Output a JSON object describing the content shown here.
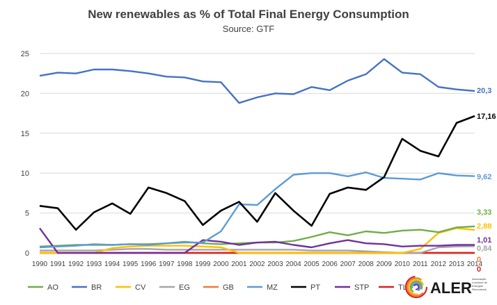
{
  "chart_data": {
    "type": "line",
    "title": "New renewables as % of Total Final Energy Consumption",
    "subtitle": "Source: GTF",
    "ylim": [
      0,
      25
    ],
    "yticks": [
      0,
      5,
      10,
      15,
      20,
      25
    ],
    "grid": true,
    "legend_position": "bottom",
    "x": [
      "1990",
      "1991",
      "1992",
      "1993",
      "1994",
      "1995",
      "1996",
      "1997",
      "1998",
      "1999",
      "2000",
      "2001",
      "2002",
      "2003",
      "2004",
      "2005",
      "2006",
      "2007",
      "2008",
      "2009",
      "2010",
      "2011",
      "2012",
      "2013",
      "2014"
    ],
    "series": [
      {
        "name": "AO",
        "color": "#70ad47",
        "end_label": "3,33",
        "values": [
          0.8,
          0.9,
          1.0,
          1.0,
          1.0,
          1.1,
          1.1,
          1.2,
          1.4,
          1.2,
          1.1,
          1.2,
          1.3,
          1.3,
          1.5,
          2.0,
          2.6,
          2.2,
          2.7,
          2.5,
          2.8,
          2.9,
          2.6,
          3.2,
          3.33
        ]
      },
      {
        "name": "BR",
        "color": "#4472c4",
        "end_label": "20,3",
        "values": [
          22.2,
          22.6,
          22.5,
          23.0,
          23.0,
          22.8,
          22.5,
          22.1,
          22.0,
          21.5,
          21.4,
          18.8,
          19.5,
          20.0,
          19.9,
          20.8,
          20.4,
          21.6,
          22.4,
          24.3,
          22.6,
          22.4,
          20.8,
          20.5,
          20.3
        ]
      },
      {
        "name": "CV",
        "color": "#ffc000",
        "end_label": "2,88",
        "values": [
          0.0,
          0.0,
          0.0,
          0.0,
          0.6,
          0.8,
          0.9,
          0.9,
          0.9,
          0.8,
          0.7,
          0.0,
          0.0,
          0.0,
          0.0,
          0.0,
          0.0,
          0.0,
          0.0,
          0.0,
          0.0,
          0.5,
          2.5,
          3.1,
          2.88
        ]
      },
      {
        "name": "EG",
        "color": "#a5a5a5",
        "end_label": "0,84",
        "values": [
          0.3,
          0.3,
          0.3,
          0.3,
          0.4,
          0.5,
          0.5,
          0.4,
          0.4,
          0.4,
          0.4,
          0.4,
          0.4,
          0.4,
          0.4,
          0.3,
          0.3,
          0.3,
          0.2,
          0.1,
          0.0,
          0.0,
          0.7,
          0.8,
          0.84
        ]
      },
      {
        "name": "GB",
        "color": "#ed7d31",
        "end_label": "0",
        "values": [
          0,
          0,
          0,
          0,
          0,
          0,
          0,
          0,
          0,
          0,
          0,
          0,
          0,
          0,
          0,
          0,
          0,
          0,
          0,
          0,
          0,
          0,
          0,
          0,
          0
        ]
      },
      {
        "name": "MZ",
        "color": "#5b9bd5",
        "end_label": "9,62",
        "values": [
          0.7,
          0.8,
          0.9,
          1.1,
          1.0,
          1.1,
          1.0,
          1.2,
          1.3,
          1.3,
          2.7,
          6.1,
          6.0,
          8.0,
          9.8,
          10.0,
          10.0,
          9.6,
          10.1,
          9.4,
          9.3,
          9.2,
          10.0,
          9.7,
          9.62
        ]
      },
      {
        "name": "PT",
        "color": "#000000",
        "end_label": "17,16",
        "values": [
          5.9,
          5.6,
          2.9,
          5.1,
          6.2,
          4.9,
          8.2,
          7.5,
          6.5,
          3.5,
          5.3,
          6.4,
          3.9,
          7.5,
          5.3,
          3.4,
          7.4,
          8.2,
          7.9,
          9.5,
          14.3,
          12.8,
          12.1,
          16.3,
          17.16
        ]
      },
      {
        "name": "STP",
        "color": "#7030a0",
        "end_label": "1,01",
        "values": [
          3.1,
          0.0,
          0.0,
          0.0,
          0.0,
          0.0,
          0.0,
          0.0,
          0.0,
          1.6,
          1.4,
          1.0,
          1.3,
          1.4,
          1.0,
          0.7,
          1.2,
          1.6,
          1.2,
          1.1,
          0.8,
          0.9,
          0.9,
          1.0,
          1.01
        ]
      },
      {
        "name": "TL",
        "color": "#e0201b",
        "end_label": "0",
        "values": [
          0,
          0,
          0,
          0,
          0,
          0,
          0,
          0,
          0,
          0,
          0,
          0,
          0,
          0,
          0,
          0,
          0,
          0,
          0,
          0,
          0,
          0,
          0,
          0,
          0
        ]
      }
    ]
  },
  "logo": {
    "text": "ALER",
    "small_lines": [
      "Associação",
      "Lusófona de",
      "Energias",
      "Renováveis"
    ],
    "colors": [
      "#e0201b",
      "#ed7d31",
      "#ffc000",
      "#70ad47",
      "#5b9bd5",
      "#7030a0"
    ]
  }
}
